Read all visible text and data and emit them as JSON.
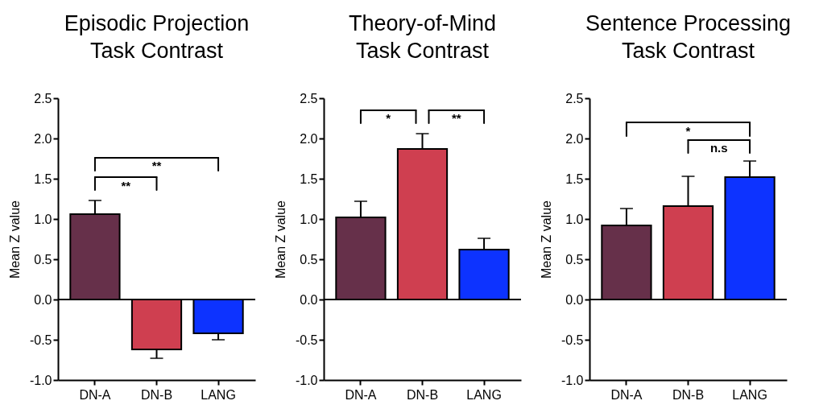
{
  "chart_data": [
    {
      "type": "bar",
      "title": "Episodic Projection\nTask Contrast",
      "ylabel": "Mean Z value",
      "categories": [
        "DN-A",
        "DN-B",
        "LANG"
      ],
      "values": [
        1.06,
        -0.62,
        -0.42
      ],
      "colors": [
        "#66304a",
        "#cf3f50",
        "#0d33ff"
      ],
      "errors": [
        [
          1.06,
          1.23
        ],
        [
          -0.73,
          -0.62
        ],
        [
          -0.5,
          -0.42
        ]
      ],
      "ylim": [
        -1.0,
        2.5
      ],
      "yticks": [
        {
          "value": -1,
          "label": "-1.0"
        },
        {
          "value": -0.5,
          "label": "-0.5"
        },
        {
          "value": 0,
          "label": "0.0"
        },
        {
          "value": 0.5,
          "label": "0.5"
        },
        {
          "value": 1,
          "label": "1.0"
        },
        {
          "value": 1.5,
          "label": "1.5"
        },
        {
          "value": 2,
          "label": "2.0"
        },
        {
          "value": 2.5,
          "label": "2.5"
        }
      ],
      "ref_lines": [
        {
          "axis": "y",
          "value": 0
        }
      ],
      "annotations": [
        "**",
        "**"
      ],
      "grid": false
    },
    {
      "type": "bar",
      "title": "Theory-of-Mind\nTask Contrast",
      "ylabel": "Mean Z value",
      "categories": [
        "DN-A",
        "DN-B",
        "LANG"
      ],
      "values": [
        1.02,
        1.87,
        0.62
      ],
      "colors": [
        "#66304a",
        "#cf3f50",
        "#0d33ff"
      ],
      "errors": [
        [
          1.02,
          1.22
        ],
        [
          1.87,
          2.06
        ],
        [
          0.62,
          0.76
        ]
      ],
      "ylim": [
        -1.0,
        2.5
      ],
      "yticks": [
        {
          "value": -1,
          "label": "-1.0"
        },
        {
          "value": -0.5,
          "label": "-0.5"
        },
        {
          "value": 0,
          "label": "0.0"
        },
        {
          "value": 0.5,
          "label": "0.5"
        },
        {
          "value": 1,
          "label": "1.0"
        },
        {
          "value": 1.5,
          "label": "1.5"
        },
        {
          "value": 2,
          "label": "2.0"
        },
        {
          "value": 2.5,
          "label": "2.5"
        }
      ],
      "ref_lines": [
        {
          "axis": "y",
          "value": 0
        }
      ],
      "annotations": [
        "*",
        "**"
      ],
      "grid": false
    },
    {
      "type": "bar",
      "title": "Sentence Processing\nTask Contrast",
      "ylabel": "Mean Z value",
      "categories": [
        "DN-A",
        "DN-B",
        "LANG"
      ],
      "values": [
        0.92,
        1.16,
        1.52
      ],
      "colors": [
        "#66304a",
        "#cf3f50",
        "#0d33ff"
      ],
      "errors": [
        [
          0.92,
          1.13
        ],
        [
          1.16,
          1.53
        ],
        [
          1.52,
          1.72
        ]
      ],
      "ylim": [
        -1.0,
        2.5
      ],
      "yticks": [
        {
          "value": -1,
          "label": "-1.0"
        },
        {
          "value": -0.5,
          "label": "-0.5"
        },
        {
          "value": 0,
          "label": "0.0"
        },
        {
          "value": 0.5,
          "label": "0.5"
        },
        {
          "value": 1,
          "label": "1.0"
        },
        {
          "value": 1.5,
          "label": "1.5"
        },
        {
          "value": 2,
          "label": "2.0"
        },
        {
          "value": 2.5,
          "label": "2.5"
        }
      ],
      "ref_lines": [
        {
          "axis": "y",
          "value": 0
        }
      ],
      "annotations": [
        "*",
        "n.s"
      ],
      "grid": false
    }
  ]
}
